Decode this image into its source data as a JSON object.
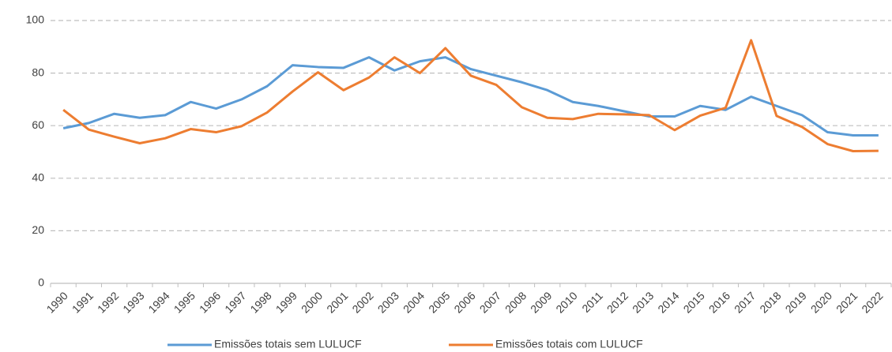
{
  "chart_data": {
    "type": "line",
    "categories": [
      "1990",
      "1991",
      "1992",
      "1993",
      "1994",
      "1995",
      "1996",
      "1997",
      "1998",
      "1999",
      "2000",
      "2001",
      "2002",
      "2003",
      "2004",
      "2005",
      "2006",
      "2007",
      "2008",
      "2009",
      "2010",
      "2011",
      "2012",
      "2013",
      "2014",
      "2015",
      "2016",
      "2017",
      "2018",
      "2019",
      "2020",
      "2021",
      "2022"
    ],
    "series": [
      {
        "name": "Emissões totais sem LULUCF",
        "color": "#5b9bd5",
        "values": [
          59,
          61,
          64.5,
          63,
          64,
          69,
          66.5,
          70,
          75,
          83,
          82.3,
          82,
          86,
          81,
          84.5,
          86,
          81.5,
          79,
          76.5,
          73.5,
          69,
          67.5,
          65.5,
          63.5,
          63.5,
          67.5,
          66,
          71,
          67.5,
          64,
          57.5,
          56.3,
          56.3
        ]
      },
      {
        "name": "Emissões totais com LULUCF",
        "color": "#ed7d31",
        "values": [
          66,
          58.5,
          55.8,
          53.3,
          55.2,
          58.7,
          57.5,
          59.8,
          65,
          73,
          80.3,
          73.5,
          78.3,
          86,
          80,
          89.5,
          79,
          75.5,
          67,
          63,
          62.5,
          64.5,
          64.3,
          64,
          58.3,
          63.8,
          66.8,
          92.5,
          63.7,
          59.5,
          53,
          50.3,
          50.4
        ]
      }
    ],
    "ylim": [
      0,
      100
    ],
    "yticks": [
      0,
      20,
      40,
      60,
      80,
      100
    ],
    "grid": true,
    "legend": "bottom"
  }
}
